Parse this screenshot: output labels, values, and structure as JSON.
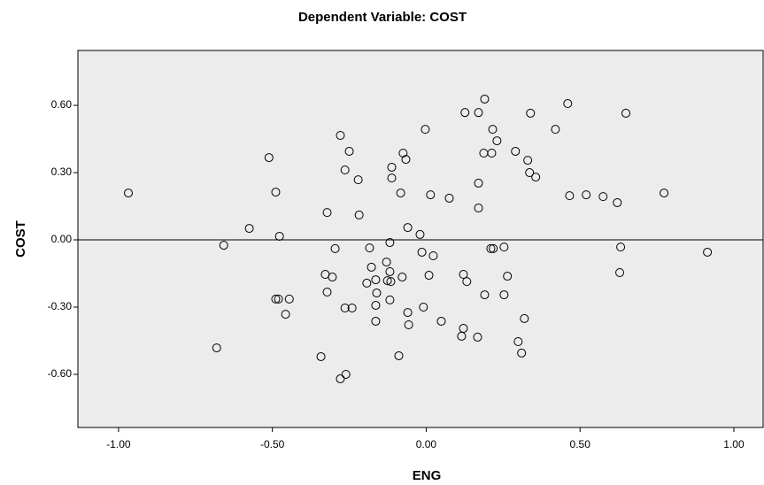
{
  "chart_data": {
    "type": "scatter",
    "title": "Dependent Variable: COST",
    "x_label": "ENG",
    "y_label": "COST",
    "xlim": [
      -1.132,
      1.095
    ],
    "ylim": [
      -0.837,
      0.845
    ],
    "xticks": [
      {
        "value": -1,
        "label": "-1.00"
      },
      {
        "value": -0.5,
        "label": "-0.50"
      },
      {
        "value": 0,
        "label": "0.00"
      },
      {
        "value": 0.5,
        "label": "0.50"
      },
      {
        "value": 1,
        "label": "1.00"
      }
    ],
    "yticks": [
      {
        "value": -0.6,
        "label": "-0.60"
      },
      {
        "value": -0.3,
        "label": "-0.30"
      },
      {
        "value": 0,
        "label": "0.00"
      },
      {
        "value": 0.3,
        "label": "0.30"
      },
      {
        "value": 0.6,
        "label": "0.60"
      }
    ],
    "reference_line_y": 0,
    "plot_background": "#ececec",
    "color": "#000000",
    "series": [
      {
        "x": [
          -0.968,
          -0.658,
          -0.681,
          -0.575,
          -0.511,
          -0.489,
          -0.477,
          -0.489,
          -0.48,
          -0.445,
          -0.457,
          -0.279,
          -0.264,
          -0.25,
          -0.221,
          -0.218,
          -0.322,
          -0.296,
          -0.328,
          -0.305,
          -0.322,
          -0.264,
          -0.241,
          -0.342,
          -0.279,
          -0.261,
          -0.184,
          -0.193,
          -0.178,
          -0.164,
          -0.161,
          -0.164,
          -0.164,
          -0.112,
          -0.112,
          -0.075,
          -0.066,
          -0.083,
          -0.06,
          -0.118,
          -0.129,
          -0.118,
          -0.126,
          -0.115,
          -0.118,
          -0.078,
          -0.06,
          -0.057,
          -0.089,
          -0.02,
          -0.014,
          0.023,
          0.009,
          -0.003,
          0.014,
          0.075,
          -0.009,
          0.049,
          0.126,
          0.17,
          0.19,
          0.216,
          0.23,
          0.187,
          0.213,
          0.17,
          0.17,
          0.21,
          0.218,
          0.253,
          0.264,
          0.253,
          0.19,
          0.121,
          0.132,
          0.121,
          0.115,
          0.167,
          0.29,
          0.33,
          0.336,
          0.356,
          0.339,
          0.46,
          0.42,
          0.466,
          0.52,
          0.575,
          0.621,
          0.649,
          0.632,
          0.629,
          0.773,
          0.914,
          0.319,
          0.299,
          0.31
        ],
        "values": [
          0.209,
          -0.024,
          -0.482,
          0.051,
          0.367,
          0.213,
          0.016,
          -0.264,
          -0.264,
          -0.264,
          -0.332,
          0.466,
          0.312,
          0.395,
          0.268,
          0.111,
          0.122,
          -0.039,
          -0.154,
          -0.166,
          -0.233,
          -0.304,
          -0.304,
          -0.521,
          -0.62,
          -0.6,
          -0.036,
          -0.193,
          -0.122,
          -0.178,
          -0.237,
          -0.292,
          -0.363,
          0.324,
          0.276,
          0.387,
          0.359,
          0.209,
          0.055,
          -0.012,
          -0.099,
          -0.142,
          -0.182,
          -0.186,
          -0.268,
          -0.166,
          -0.324,
          -0.379,
          -0.517,
          0.024,
          -0.055,
          -0.071,
          -0.158,
          0.493,
          0.201,
          0.186,
          -0.3,
          -0.363,
          0.568,
          0.568,
          0.628,
          0.493,
          0.442,
          0.387,
          0.387,
          0.253,
          0.142,
          -0.039,
          -0.039,
          -0.032,
          -0.162,
          -0.245,
          -0.245,
          -0.154,
          -0.186,
          -0.395,
          -0.43,
          -0.434,
          0.395,
          0.355,
          0.3,
          0.28,
          0.565,
          0.608,
          0.493,
          0.197,
          0.201,
          0.193,
          0.166,
          0.565,
          -0.032,
          -0.146,
          0.209,
          -0.055,
          -0.351,
          -0.454,
          -0.505
        ]
      }
    ]
  }
}
